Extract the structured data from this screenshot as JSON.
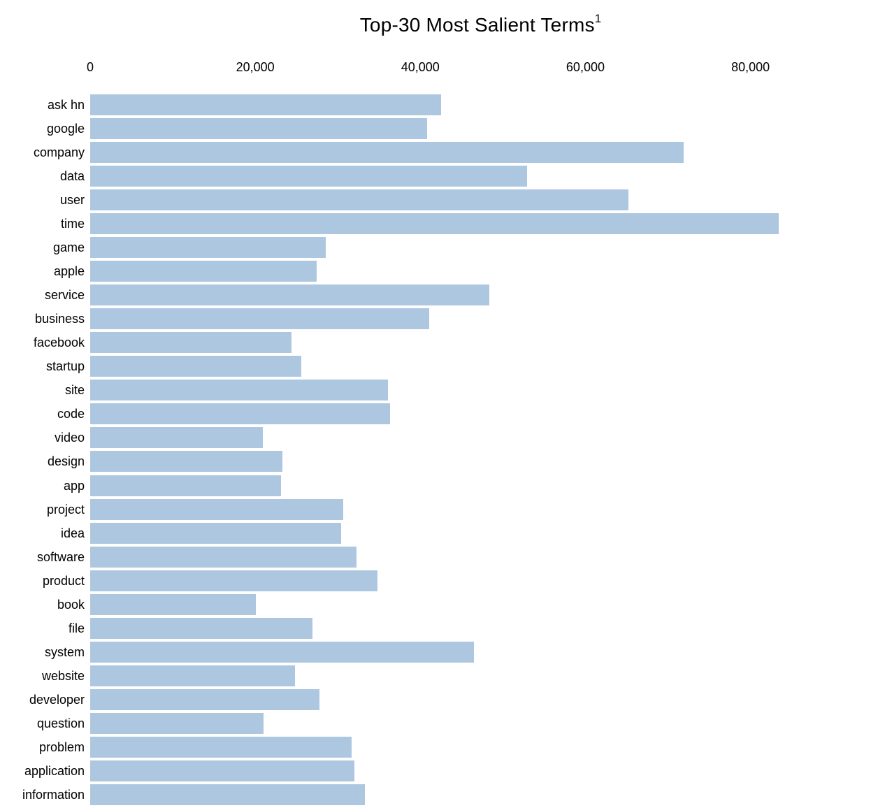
{
  "chart_data": {
    "type": "bar",
    "orientation": "horizontal",
    "title": "Top-30 Most Salient Terms",
    "title_superscript": "1",
    "xlabel": "",
    "ylabel": "",
    "grid": false,
    "legend": null,
    "bar_color": "#aec7e1",
    "x_axis": {
      "position": "top",
      "tick_labels": [
        "0",
        "20,000",
        "40,000",
        "60,000",
        "80,000"
      ],
      "tick_values": [
        0,
        20000,
        40000,
        60000,
        80000
      ],
      "xlim": [
        0,
        94600
      ]
    },
    "categories": [
      "ask hn",
      "google",
      "company",
      "data",
      "user",
      "time",
      "game",
      "apple",
      "service",
      "business",
      "facebook",
      "startup",
      "site",
      "code",
      "video",
      "design",
      "app",
      "project",
      "idea",
      "software",
      "product",
      "book",
      "file",
      "system",
      "website",
      "developer",
      "question",
      "problem",
      "application",
      "information"
    ],
    "values": [
      42500,
      40800,
      71900,
      52900,
      65200,
      83400,
      28500,
      27400,
      48400,
      41100,
      24400,
      25600,
      36100,
      36300,
      20900,
      23300,
      23100,
      30700,
      30400,
      32300,
      34800,
      20100,
      26900,
      46500,
      24800,
      27800,
      21000,
      31700,
      32000,
      33300
    ]
  }
}
